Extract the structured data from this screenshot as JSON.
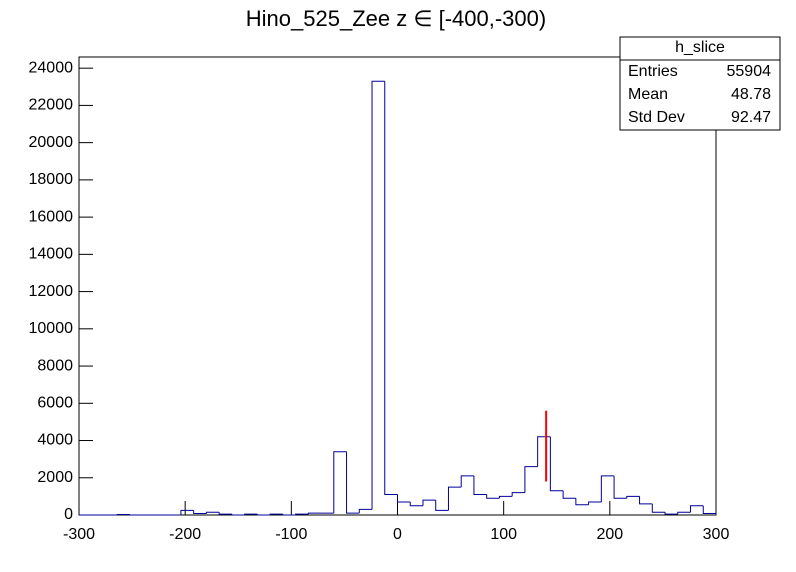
{
  "chart_data": {
    "type": "histogram",
    "title": "Hino_525_Zee z  ∈ [-400,-300)",
    "bins": [
      -300,
      -288,
      -276,
      -264,
      -252,
      -240,
      -228,
      -216,
      -204,
      -192,
      -180,
      -168,
      -156,
      -144,
      -132,
      -120,
      -108,
      -96,
      -84,
      -72,
      -60,
      -48,
      -36,
      -24,
      -12,
      0,
      12,
      24,
      36,
      48,
      60,
      72,
      84,
      96,
      108,
      120,
      132,
      144,
      156,
      168,
      180,
      192,
      204,
      216,
      228,
      240,
      252,
      264,
      276,
      288,
      300
    ],
    "values": [
      0,
      0,
      0,
      30,
      0,
      0,
      0,
      0,
      250,
      80,
      150,
      50,
      0,
      50,
      0,
      50,
      0,
      50,
      100,
      100,
      3400,
      100,
      300,
      23300,
      1100,
      700,
      500,
      800,
      250,
      1500,
      2100,
      1100,
      900,
      1000,
      1200,
      2600,
      4200,
      1300,
      900,
      550,
      700,
      2100,
      900,
      1000,
      600,
      150,
      50,
      150,
      500,
      80
    ],
    "color": "#000099",
    "marker": {
      "x": 140,
      "y": [
        1800,
        5600
      ],
      "color": "#ff0000"
    },
    "xlim": [
      -300,
      300
    ],
    "xticks": [
      -300,
      -200,
      -100,
      0,
      100,
      200,
      300
    ],
    "ylim": [
      0,
      24600
    ],
    "yticks": [
      0,
      2000,
      4000,
      6000,
      8000,
      10000,
      12000,
      14000,
      16000,
      18000,
      20000,
      22000,
      24000
    ],
    "stats": {
      "name": "h_slice",
      "rows": [
        [
          "Entries",
          "55904"
        ],
        [
          "Mean",
          "48.78"
        ],
        [
          "Std Dev",
          "92.47"
        ]
      ]
    }
  }
}
